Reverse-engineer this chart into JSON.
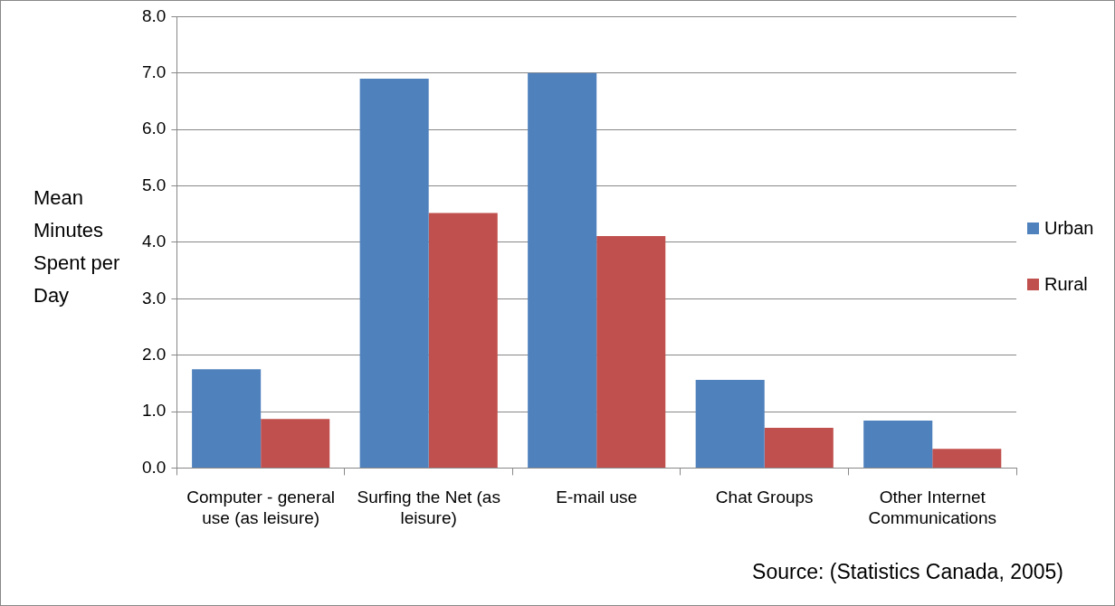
{
  "chart_data": {
    "type": "bar",
    "ylabel": "Mean Minutes Spent per Day",
    "categories": [
      "Computer - general use (as leisure)",
      "Surfing the Net (as leisure)",
      "E-mail use",
      "Chat Groups",
      "Other Internet Communications"
    ],
    "series": [
      {
        "name": "Urban",
        "color": "#4f81bd",
        "values": [
          1.75,
          6.9,
          7.0,
          1.56,
          0.84
        ]
      },
      {
        "name": "Rural",
        "color": "#c0504d",
        "values": [
          0.87,
          4.52,
          4.11,
          0.71,
          0.34
        ]
      }
    ],
    "ylim": [
      0,
      8
    ],
    "yticks": [
      {
        "value": 0,
        "label": "0.0"
      },
      {
        "value": 1,
        "label": "1.0"
      },
      {
        "value": 2,
        "label": "2.0"
      },
      {
        "value": 3,
        "label": "3.0"
      },
      {
        "value": 4,
        "label": "4.0"
      },
      {
        "value": 5,
        "label": "5.0"
      },
      {
        "value": 6,
        "label": "6.0"
      },
      {
        "value": 7,
        "label": "7.0"
      },
      {
        "value": 8,
        "label": "8.0"
      }
    ],
    "grid": "y",
    "legend": "right",
    "annotations": [
      "Source: (Statistics Canada, 2005)"
    ]
  }
}
